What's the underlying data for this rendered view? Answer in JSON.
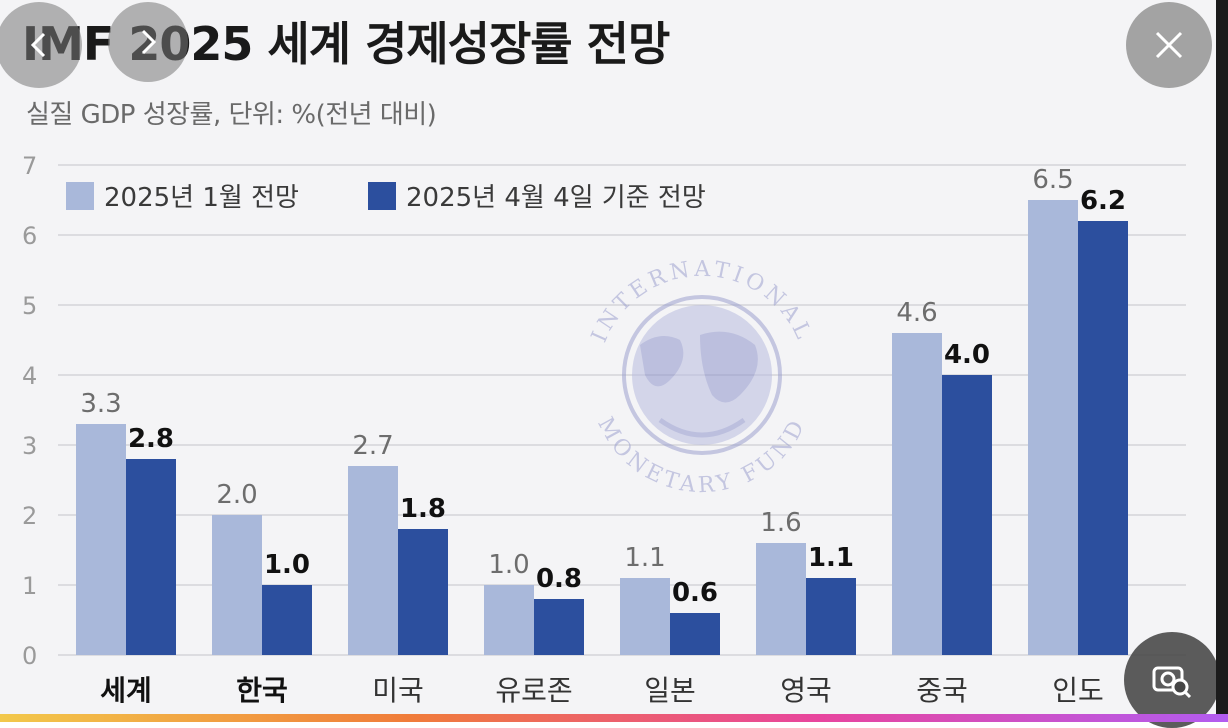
{
  "title": "IMF 2025 세계 경제성장률 전망",
  "subtitle": "실질 GDP 성장률, 단위: %(전년 대비)",
  "watermark": {
    "top_text": "INTERNATIONAL",
    "bottom_text": "MONETARY FUND"
  },
  "colors": {
    "series1": "#a9b8da",
    "series2": "#2c4f9e",
    "grid": "#d4d4d8",
    "label_light": "#6d6d6d",
    "label_dark": "#111111"
  },
  "icons": {
    "prev": "chevron-left-icon",
    "next": "chevron-right-icon",
    "close": "close-icon",
    "lens": "visual-search-icon"
  },
  "chart_data": {
    "type": "bar",
    "categories": [
      "세계",
      "한국",
      "미국",
      "유로존",
      "일본",
      "영국",
      "중국",
      "인도"
    ],
    "bold_categories": [
      "세계",
      "한국"
    ],
    "series": [
      {
        "name": "2025년 1월 전망",
        "values": [
          3.3,
          2.0,
          2.7,
          1.0,
          1.1,
          1.6,
          4.6,
          6.5
        ]
      },
      {
        "name": "2025년 4월 4일 기준 전망",
        "values": [
          2.8,
          1.0,
          1.8,
          0.8,
          0.6,
          1.1,
          4.0,
          6.2
        ]
      }
    ],
    "ylim": [
      0,
      7
    ],
    "yticks": [
      0,
      1,
      2,
      3,
      4,
      5,
      6,
      7
    ],
    "grid": true,
    "legend": "top-left"
  }
}
